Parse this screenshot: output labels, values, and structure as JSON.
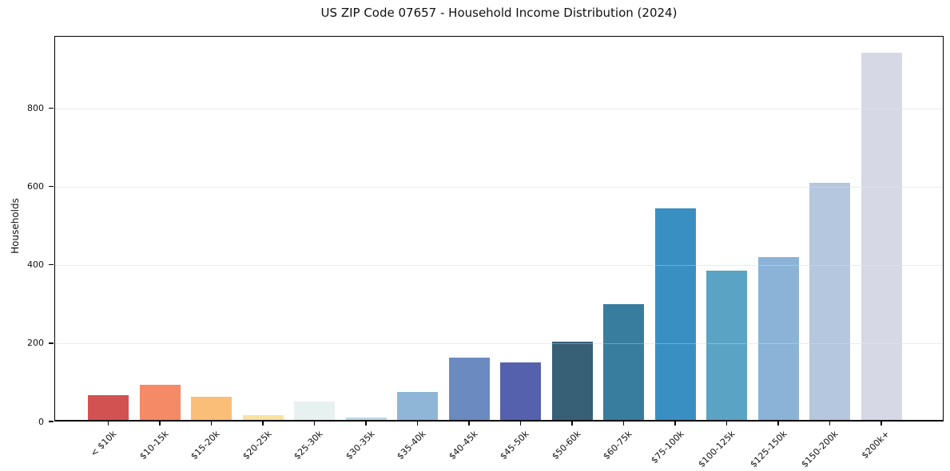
{
  "chart_data": {
    "type": "bar",
    "title": "US ZIP Code 07657 - Household Income Distribution (2024)",
    "xlabel": "",
    "ylabel": "Households",
    "categories": [
      "< $10k",
      "$10-15k",
      "$15-20k",
      "$20-25k",
      "$25-30k",
      "$30-35k",
      "$35-40k",
      "$40-45k",
      "$45-50k",
      "$50-60k",
      "$60-75k",
      "$75-100k",
      "$100-125k",
      "$125-150k",
      "$150-200k",
      "$200k+"
    ],
    "values": [
      63,
      89,
      59,
      13,
      47,
      7,
      72,
      160,
      146,
      199,
      295,
      540,
      381,
      417,
      606,
      938
    ],
    "bar_colors": [
      "#d25251",
      "#f58a66",
      "#fbbe78",
      "#f9e2a0",
      "#e7f1ef",
      "#b9dae6",
      "#8fb6d7",
      "#6b8ac0",
      "#5561ad",
      "#375f76",
      "#387d9d",
      "#3a8fc2",
      "#5ba3c4",
      "#8bb3d7",
      "#b5c6df",
      "#d7d8e6"
    ],
    "ylim": [
      0,
      985
    ],
    "yticks": [
      0,
      200,
      400,
      600,
      800
    ],
    "grid": "horizontal",
    "legend": "none",
    "background_color": "#ffffff",
    "gridline_color": "#e9e9ed"
  }
}
